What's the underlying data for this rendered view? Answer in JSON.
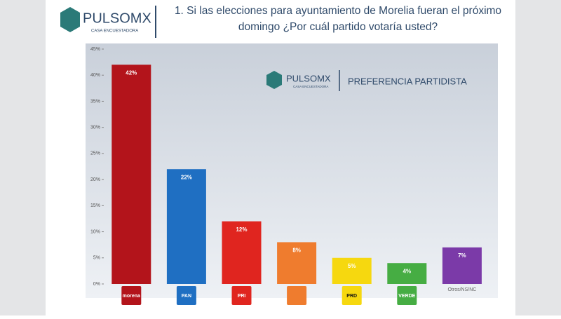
{
  "header": {
    "logo": "PULSOMX",
    "logo_subtitle": "CASA ENCUESTADORA"
  },
  "chart_data": {
    "type": "bar",
    "title": "1. Si las elecciones para ayuntamiento de Morelia fueran el próximo domingo ¿Por cuál partido votaría usted?",
    "subtitle": "PREFERENCIA PARTIDISTA",
    "categories": [
      "morena",
      "PAN",
      "PRI",
      null,
      "PRD",
      "VERDE",
      "Otros/NS/NC"
    ],
    "values": [
      42,
      22,
      12,
      8,
      5,
      4,
      7
    ],
    "value_labels": [
      "42%",
      "22%",
      "12%",
      "8%",
      "5%",
      "4%",
      "7%"
    ],
    "colors": [
      "#b3141b",
      "#1f6fc2",
      "#e0251f",
      "#ef7c2e",
      "#f6d80f",
      "#46ad43",
      "#7b3aa8"
    ],
    "ylim": [
      0,
      45
    ],
    "yticks": [
      {
        "value": 0,
        "label": "0%"
      },
      {
        "value": 5,
        "label": "5%"
      },
      {
        "value": 10,
        "label": "10%"
      },
      {
        "value": 15,
        "label": "15%"
      },
      {
        "value": 20,
        "label": "20%"
      },
      {
        "value": 25,
        "label": "25%"
      },
      {
        "value": 30,
        "label": "30%"
      },
      {
        "value": 35,
        "label": "35%"
      },
      {
        "value": 40,
        "label": "40%"
      },
      {
        "value": 45,
        "label": "45%"
      }
    ],
    "grid": false
  }
}
